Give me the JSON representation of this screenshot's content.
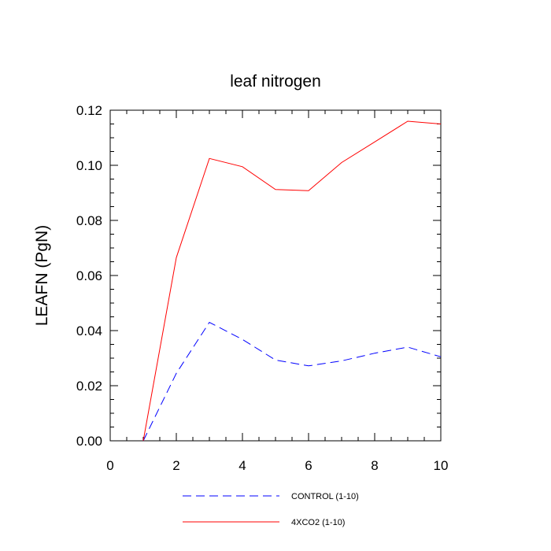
{
  "chart_data": {
    "type": "line",
    "title": "leaf nitrogen",
    "xlabel": "",
    "ylabel": "LEAFN  (PgN)",
    "xlim": [
      0,
      10
    ],
    "ylim": [
      0,
      0.12
    ],
    "xticks": [
      0,
      2,
      4,
      6,
      8,
      10
    ],
    "xtick_labels": [
      "0",
      "2",
      "4",
      "6",
      "8",
      "10"
    ],
    "yticks": [
      0,
      0.02,
      0.04,
      0.06,
      0.08,
      0.1,
      0.12
    ],
    "ytick_labels": [
      "0.00",
      "0.02",
      "0.04",
      "0.06",
      "0.08",
      "0.10",
      "0.12"
    ],
    "grid": false,
    "legend_position": "bottom",
    "series": [
      {
        "name": "CONTROL (1-10)",
        "color": "#0000ff",
        "dash": "dashed",
        "x": [
          1,
          2,
          3,
          4,
          5,
          6,
          7,
          8,
          9,
          10
        ],
        "values": [
          0.0,
          0.0245,
          0.043,
          0.0368,
          0.0293,
          0.0272,
          0.029,
          0.0318,
          0.034,
          0.0305
        ]
      },
      {
        "name": "4XCO2 (1-10)",
        "color": "#ff0000",
        "dash": "solid",
        "x": [
          1,
          2,
          3,
          4,
          5,
          6,
          7,
          8,
          9,
          10
        ],
        "values": [
          0.0,
          0.0665,
          0.1025,
          0.0995,
          0.0912,
          0.0908,
          0.101,
          0.1085,
          0.116,
          0.115
        ]
      }
    ]
  }
}
